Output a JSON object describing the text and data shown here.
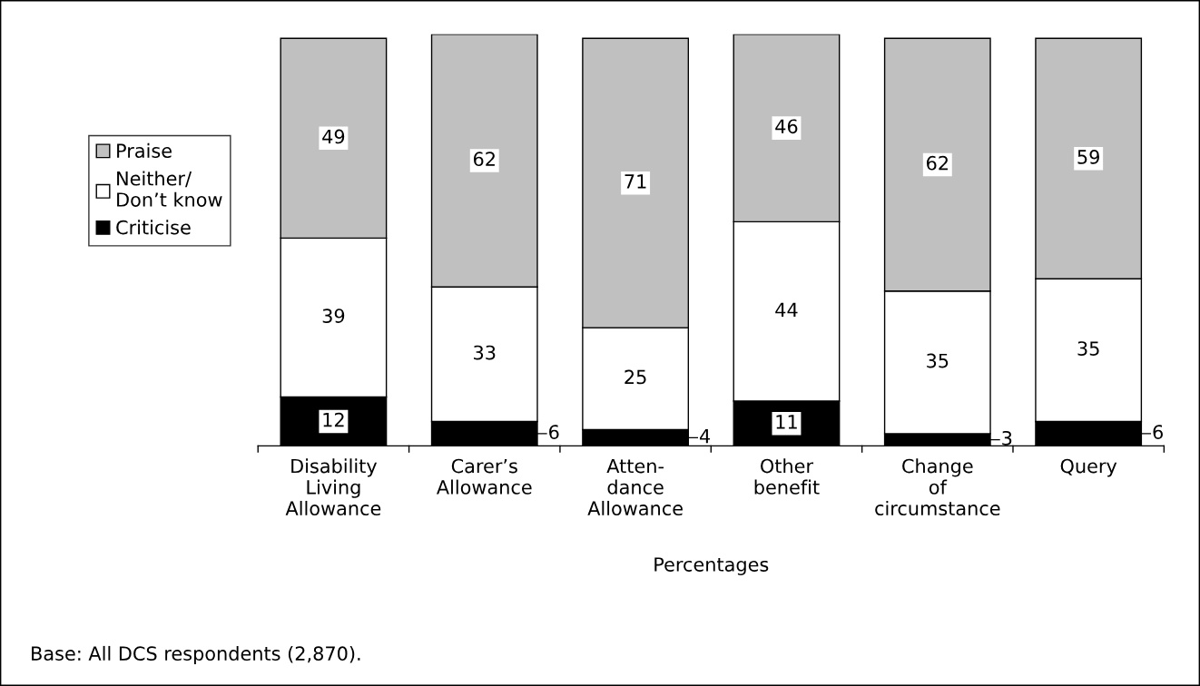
{
  "chart_data": {
    "type": "bar",
    "stacked": true,
    "categories": [
      "Disability\nLiving\nAllowance",
      "Carer’s\nAllowance",
      "Atten-\ndance\nAllowance",
      "Other\nbenefit",
      "Change\nof\ncircumstance",
      "Query"
    ],
    "series": [
      {
        "name": "Criticise",
        "color": "#000000",
        "values": [
          12,
          6,
          4,
          11,
          3,
          6
        ]
      },
      {
        "name": "Neither/\nDon’t know",
        "color": "#ffffff",
        "values": [
          39,
          33,
          25,
          44,
          35,
          35
        ]
      },
      {
        "name": "Praise",
        "color": "#c0c0c0",
        "values": [
          49,
          62,
          71,
          46,
          62,
          59
        ]
      }
    ],
    "ylim": [
      0,
      101
    ],
    "tick_labels": "x",
    "data_labels": true,
    "legend": "left",
    "grid": false,
    "xlabel": "Percentages",
    "annotations": [
      "Base: All DCS respondents (2,870)."
    ]
  }
}
